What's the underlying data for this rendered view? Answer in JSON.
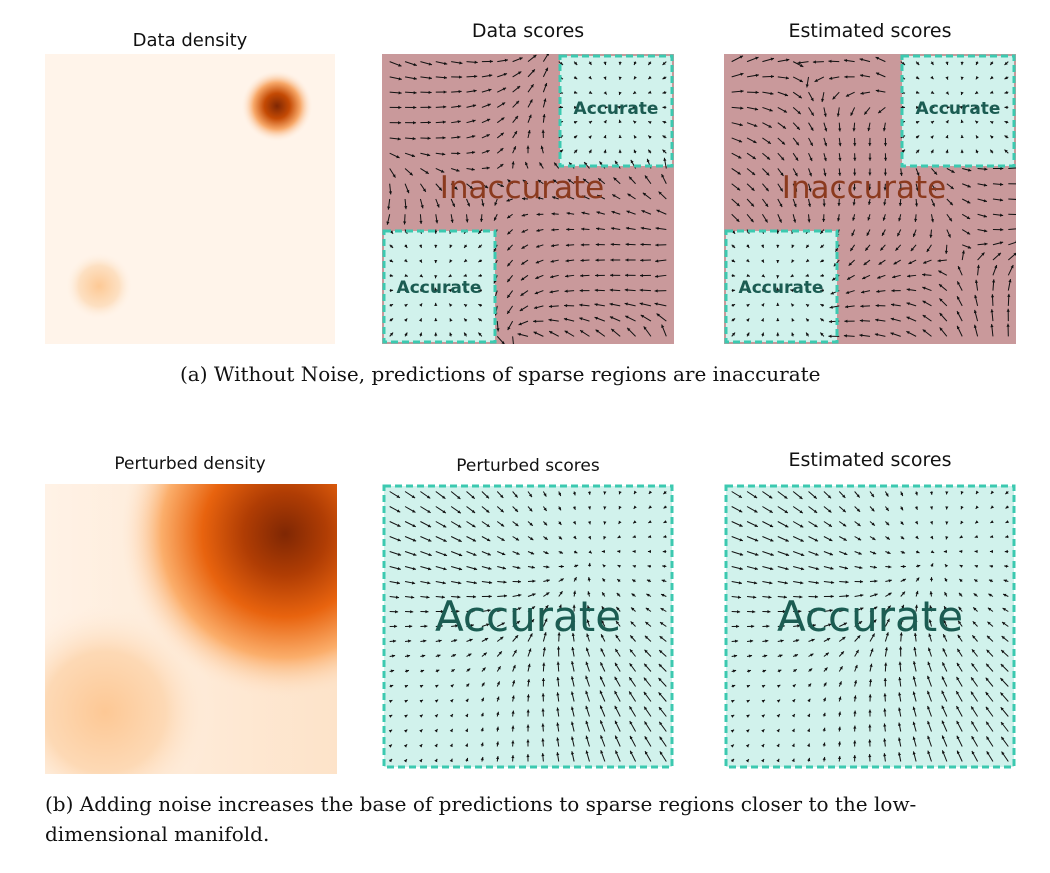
{
  "figure": {
    "row_a": {
      "density_title": "Data density",
      "data_scores_title": "Data scores",
      "estimated_scores_title": "Estimated scores",
      "inaccurate_label": "Inaccurate",
      "accurate_label": "Accurate",
      "caption": "(a) Without Noise, predictions of sparse regions are inaccurate"
    },
    "row_b": {
      "density_title": "Perturbed density",
      "perturbed_scores_title": "Perturbed scores",
      "estimated_scores_title": "Estimated scores",
      "accurate_label": "Accurate",
      "caption_line1": "(b) Adding noise increases the base of predictions to sparse regions closer to the low-",
      "caption_line2": "dimensional manifold."
    },
    "colors": {
      "inaccurate_fill": "#c9999b",
      "inaccurate_text": "#8b3a1e",
      "accurate_fill": "#d1f2ec",
      "accurate_border": "#3cc9b0",
      "accurate_text": "#1b5c52",
      "density_light": "#fff4ea",
      "density_dark": "#7f2704",
      "arrow": "#111111"
    }
  }
}
